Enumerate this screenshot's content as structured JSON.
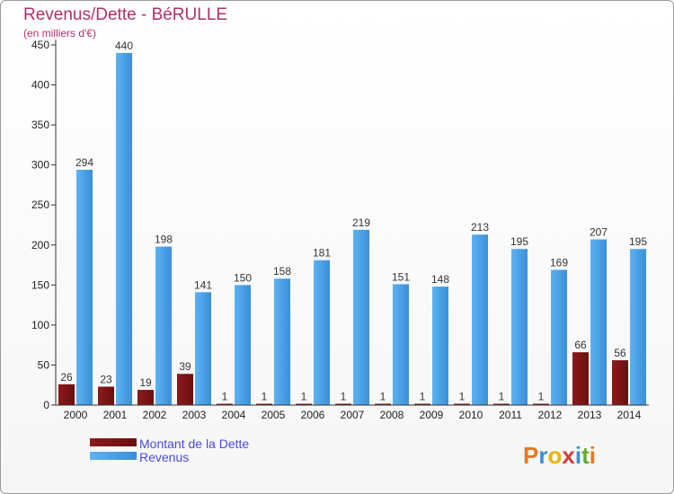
{
  "chart_data": {
    "type": "bar",
    "title": "Revenus/Dette - BéRULLE",
    "subtitle": "(en milliers d'€)",
    "categories": [
      "2000",
      "2001",
      "2002",
      "2003",
      "2004",
      "2005",
      "2006",
      "2007",
      "2008",
      "2009",
      "2010",
      "2011",
      "2012",
      "2013",
      "2014"
    ],
    "series": [
      {
        "name": "Montant de la Dette",
        "color": "#6b0f0f",
        "values": [
          26,
          23,
          19,
          39,
          1,
          1,
          1,
          1,
          1,
          1,
          1,
          1,
          1,
          66,
          56
        ]
      },
      {
        "name": "Revenus",
        "color": "#4aa3e8",
        "values": [
          294,
          440,
          198,
          141,
          150,
          158,
          181,
          219,
          151,
          148,
          213,
          195,
          169,
          207,
          195
        ]
      }
    ],
    "ylim": [
      0,
      450
    ],
    "yticks": [
      0,
      50,
      100,
      150,
      200,
      250,
      300,
      350,
      400,
      450
    ],
    "grid": false,
    "legend_position": "bottom-left"
  },
  "logo": {
    "text": "Proxiti",
    "colors": [
      "#e87722",
      "#3b8fd6",
      "#e8b400",
      "#d23b3b",
      "#3b8fd6",
      "#66aa33",
      "#e87722"
    ]
  }
}
